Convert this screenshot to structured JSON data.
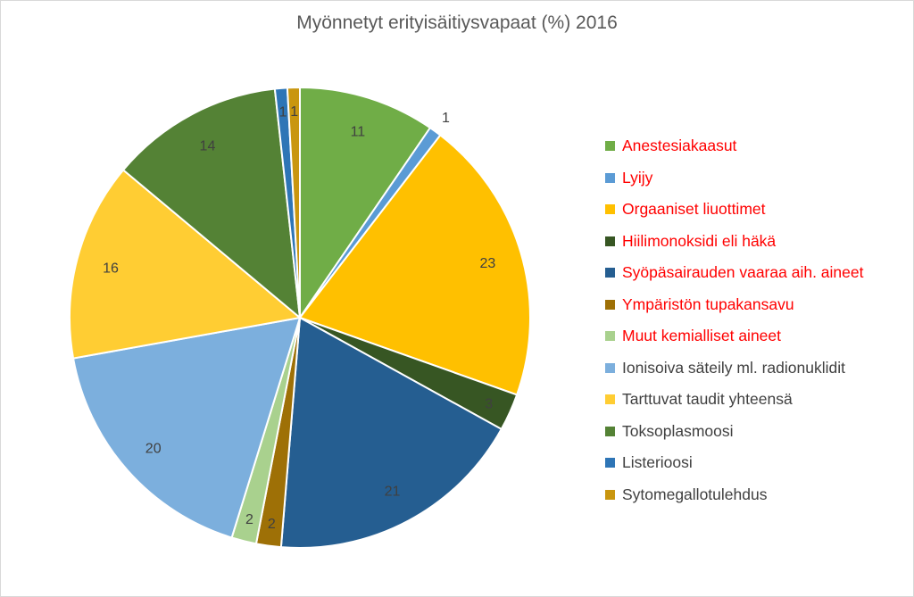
{
  "chart_data": {
    "type": "pie",
    "title": "Myönnetyt erityisäitiysvapaat (%) 2016",
    "slices": [
      {
        "label": "Anestesiakaasut",
        "value": 11,
        "value_label": "11",
        "color": "#70ad47",
        "legend_color": "#ff0000"
      },
      {
        "label": "Lyijy",
        "value": 1,
        "value_label": "1",
        "color": "#5b9bd5",
        "legend_color": "#ff0000"
      },
      {
        "label": "Orgaaniset liuottimet",
        "value": 23,
        "value_label": "23",
        "color": "#ffc000",
        "legend_color": "#ff0000"
      },
      {
        "label": "Hiilimonoksidi eli häkä",
        "value": 3,
        "value_label": "3",
        "color": "#375623",
        "legend_color": "#ff0000"
      },
      {
        "label": "Syöpäsairauden vaaraa aih. aineet",
        "value": 21,
        "value_label": "21",
        "color": "#255e91",
        "legend_color": "#ff0000"
      },
      {
        "label": "Ympäristön tupakansavu",
        "value": 2,
        "value_label": "2",
        "color": "#9e7006",
        "legend_color": "#ff0000"
      },
      {
        "label": "Muut kemialliset aineet",
        "value": 2,
        "value_label": "2",
        "color": "#a9d18e",
        "legend_color": "#ff0000"
      },
      {
        "label": "Ionisoiva säteily ml. radionuklidit",
        "value": 20,
        "value_label": "20",
        "color": "#7cafdd",
        "legend_color": "#404040"
      },
      {
        "label": "Tarttuvat taudit yhteensä",
        "value": 16,
        "value_label": "16",
        "color": "#ffcd33",
        "legend_color": "#404040"
      },
      {
        "label": "Toksoplasmoosi",
        "value": 14,
        "value_label": "14",
        "color": "#548235",
        "legend_color": "#404040"
      },
      {
        "label": "Listerioosi",
        "value": 1,
        "value_label": "1",
        "color": "#2e75b6",
        "legend_color": "#404040"
      },
      {
        "label": "Sytomegallotulehdus",
        "value": 1,
        "value_label": "1",
        "color": "#c9960f",
        "legend_color": "#404040"
      }
    ],
    "legend_position": "right"
  }
}
